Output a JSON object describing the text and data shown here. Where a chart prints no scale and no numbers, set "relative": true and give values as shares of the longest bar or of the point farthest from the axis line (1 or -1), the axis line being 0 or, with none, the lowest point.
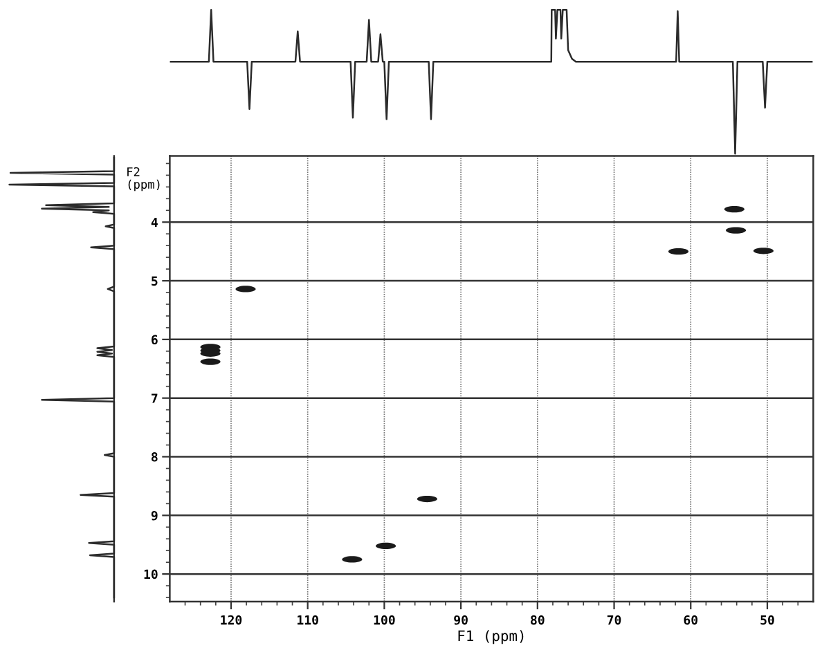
{
  "chart_data": [
    {
      "type": "line",
      "relative": true,
      "tick_labels": false,
      "color": "#2b2b2b",
      "xlim": [
        128,
        44
      ],
      "x": [
        127.9,
        122.9,
        122.6,
        122.3,
        117.9,
        117.6,
        117.3,
        111.6,
        111.3,
        111.0,
        104.4,
        104.1,
        103.8,
        102.3,
        102.0,
        101.7,
        100.8,
        100.5,
        100.2,
        100.0,
        99.7,
        99.4,
        94.2,
        93.9,
        93.6,
        78.2,
        78.15,
        77.7,
        77.6,
        77.4,
        77.0,
        76.9,
        76.7,
        76.2,
        76.0,
        75.5,
        75.0,
        61.9,
        61.7,
        61.5,
        54.5,
        54.2,
        53.9,
        50.6,
        50.3,
        50.0,
        44.2
      ],
      "values": [
        0.64,
        0.64,
        1.0,
        0.64,
        0.64,
        0.31,
        0.64,
        0.64,
        0.85,
        0.64,
        0.64,
        0.25,
        0.64,
        0.64,
        0.93,
        0.64,
        0.64,
        0.83,
        0.64,
        0.64,
        0.24,
        0.64,
        0.64,
        0.24,
        0.64,
        0.64,
        1.0,
        1.0,
        0.8,
        1.0,
        1.0,
        0.8,
        1.0,
        1.0,
        0.72,
        0.66,
        0.64,
        0.64,
        0.99,
        0.64,
        0.64,
        0.0,
        0.64,
        0.64,
        0.32,
        0.64,
        0.64
      ]
    },
    {
      "type": "line",
      "relative": true,
      "orientation": "horizontal",
      "tick_labels": false,
      "color": "#2b2b2b",
      "ylim": [
        10.47,
        2.87
      ],
      "x": [
        2.9,
        3.13,
        3.16,
        3.19,
        3.33,
        3.36,
        3.39,
        3.68,
        3.71,
        3.74,
        3.77,
        3.8,
        3.83,
        3.86,
        4.04,
        4.07,
        4.1,
        4.4,
        4.43,
        4.46,
        5.1,
        5.14,
        5.18,
        6.12,
        6.15,
        6.18,
        6.21,
        6.24,
        6.27,
        6.3,
        7.0,
        7.03,
        7.06,
        7.94,
        7.97,
        8.0,
        8.62,
        8.65,
        8.68,
        9.44,
        9.47,
        9.5,
        9.65,
        9.68,
        9.71,
        10.4
      ],
      "values": [
        0,
        0,
        -0.99,
        0,
        0,
        -1.0,
        0,
        0,
        -0.65,
        -0.05,
        -0.69,
        -0.05,
        -0.2,
        0,
        0,
        -0.08,
        0,
        0,
        -0.22,
        0,
        0,
        -0.06,
        0,
        0,
        -0.16,
        -0.02,
        -0.16,
        -0.02,
        -0.16,
        0,
        0,
        -0.69,
        0,
        0,
        -0.09,
        0,
        0,
        -0.32,
        0,
        0,
        -0.24,
        0,
        0,
        -0.23,
        0,
        0
      ]
    },
    {
      "type": "scatter",
      "marker": "circle",
      "color": "#1a1a1a",
      "grid": true,
      "xlabel": "F1 (ppm)",
      "ylabel": "F2\n(ppm)",
      "xlim": [
        128,
        44
      ],
      "ylim": [
        10.47,
        2.87
      ],
      "xticks": [
        {
          "value": 46,
          "label": null
        },
        {
          "value": 48,
          "label": null
        },
        50,
        {
          "value": 52,
          "label": null
        },
        {
          "value": 54,
          "label": null
        },
        {
          "value": 56,
          "label": null
        },
        {
          "value": 58,
          "label": null
        },
        60,
        {
          "value": 62,
          "label": null
        },
        {
          "value": 64,
          "label": null
        },
        {
          "value": 66,
          "label": null
        },
        {
          "value": 68,
          "label": null
        },
        70,
        {
          "value": 72,
          "label": null
        },
        {
          "value": 74,
          "label": null
        },
        {
          "value": 76,
          "label": null
        },
        {
          "value": 78,
          "label": null
        },
        80,
        {
          "value": 82,
          "label": null
        },
        {
          "value": 84,
          "label": null
        },
        {
          "value": 86,
          "label": null
        },
        {
          "value": 88,
          "label": null
        },
        90,
        {
          "value": 92,
          "label": null
        },
        {
          "value": 94,
          "label": null
        },
        {
          "value": 96,
          "label": null
        },
        {
          "value": 98,
          "label": null
        },
        100,
        {
          "value": 102,
          "label": null
        },
        {
          "value": 104,
          "label": null
        },
        {
          "value": 106,
          "label": null
        },
        {
          "value": 108,
          "label": null
        },
        110,
        {
          "value": 112,
          "label": null
        },
        {
          "value": 114,
          "label": null
        },
        {
          "value": 116,
          "label": null
        },
        {
          "value": 118,
          "label": null
        },
        120,
        {
          "value": 122,
          "label": null
        },
        {
          "value": 124,
          "label": null
        },
        {
          "value": 126,
          "label": null
        }
      ],
      "yticks": [
        {
          "value": 3,
          "label": null
        },
        {
          "value": 3.2,
          "label": null
        },
        {
          "value": 3.4,
          "label": null
        },
        {
          "value": 3.6,
          "label": null
        },
        {
          "value": 3.8,
          "label": null
        },
        4,
        {
          "value": 4.2,
          "label": null
        },
        {
          "value": 4.4,
          "label": null
        },
        {
          "value": 4.6,
          "label": null
        },
        {
          "value": 4.8,
          "label": null
        },
        5,
        {
          "value": 5.2,
          "label": null
        },
        {
          "value": 5.4,
          "label": null
        },
        {
          "value": 5.6,
          "label": null
        },
        {
          "value": 5.8,
          "label": null
        },
        6,
        {
          "value": 6.2,
          "label": null
        },
        {
          "value": 6.4,
          "label": null
        },
        {
          "value": 6.6,
          "label": null
        },
        {
          "value": 6.8,
          "label": null
        },
        7,
        {
          "value": 7.2,
          "label": null
        },
        {
          "value": 7.4,
          "label": null
        },
        {
          "value": 7.6,
          "label": null
        },
        {
          "value": 7.8,
          "label": null
        },
        8,
        {
          "value": 8.2,
          "label": null
        },
        {
          "value": 8.4,
          "label": null
        },
        {
          "value": 8.6,
          "label": null
        },
        {
          "value": 8.8,
          "label": null
        },
        9,
        {
          "value": 9.2,
          "label": null
        },
        {
          "value": 9.4,
          "label": null
        },
        {
          "value": 9.6,
          "label": null
        },
        {
          "value": 9.8,
          "label": null
        },
        10,
        {
          "value": 10.2,
          "label": null
        },
        {
          "value": 10.4,
          "label": null
        }
      ],
      "x": [
        122.7,
        122.7,
        122.7,
        122.7,
        118.1,
        104.2,
        99.8,
        94.4,
        54.3,
        54.1,
        61.6,
        50.5
      ],
      "values": [
        6.13,
        6.19,
        6.24,
        6.38,
        5.14,
        9.75,
        9.52,
        8.72,
        3.78,
        4.14,
        4.5,
        4.49
      ]
    }
  ]
}
